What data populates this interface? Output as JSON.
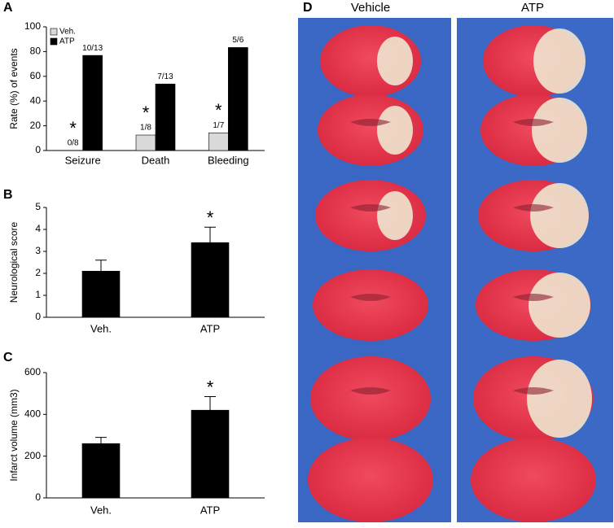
{
  "chart_data": [
    {
      "type": "bar",
      "panel_label": "A",
      "ylabel": "Rate (%) of events",
      "categories": [
        "Seizure",
        "Death",
        "Bleeding"
      ],
      "series": [
        {
          "name": "Veh.",
          "color": "#d9d9d9",
          "values": [
            0,
            12.5,
            14.3
          ],
          "value_labels": [
            "0/8",
            "1/8",
            "1/7"
          ],
          "significance": [
            "*",
            "*",
            "*"
          ]
        },
        {
          "name": "ATP",
          "color": "#000000",
          "values": [
            76.9,
            53.8,
            83.3
          ],
          "value_labels": [
            "10/13",
            "7/13",
            "5/6"
          ]
        }
      ],
      "ylim": [
        0,
        100
      ],
      "yticks": [
        0,
        20,
        40,
        60,
        80,
        100
      ],
      "legend": "upper left",
      "grid": false
    },
    {
      "type": "bar",
      "panel_label": "B",
      "ylabel": "Neurological score",
      "categories": [
        "Veh.",
        "ATP"
      ],
      "values": [
        2.1,
        3.4
      ],
      "errors": [
        0.5,
        0.7
      ],
      "significance": [
        null,
        "*"
      ],
      "color": "#000000",
      "ylim": [
        0,
        5
      ],
      "yticks": [
        0,
        1,
        2,
        3,
        4,
        5
      ],
      "grid": false
    },
    {
      "type": "bar",
      "panel_label": "C",
      "ylabel": "Infarct volume (mm3)",
      "categories": [
        "Veh.",
        "ATP"
      ],
      "values": [
        260,
        420
      ],
      "errors": [
        30,
        65
      ],
      "significance": [
        null,
        "*"
      ],
      "color": "#000000",
      "ylim": [
        0,
        600
      ],
      "yticks": [
        0,
        200,
        400,
        600
      ],
      "grid": false
    }
  ],
  "panel_d": {
    "label": "D",
    "columns": [
      "Vehicle",
      "ATP"
    ]
  }
}
